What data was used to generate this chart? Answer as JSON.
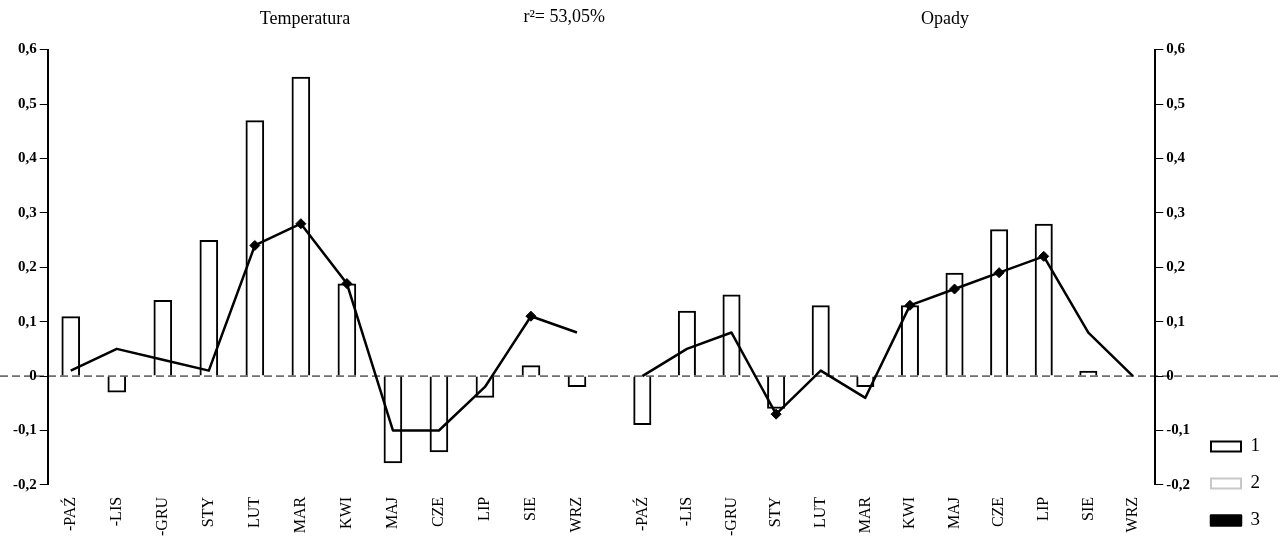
{
  "chart_data": [
    {
      "type": "bar",
      "title": "Temperatura",
      "annotations": [
        "r²= 53,05%"
      ],
      "categories": [
        "-PAŹ",
        "-LIS",
        "-GRU",
        "STY",
        "LUT",
        "MAR",
        "KWI",
        "MAJ",
        "CZE",
        "LIP",
        "SIE",
        "WRZ"
      ],
      "series": [
        {
          "color": "#000000",
          "values": [
            0.11,
            -0.03,
            0.14,
            0.25,
            0.47,
            0.55,
            0.17,
            -0.16,
            -0.14,
            -0.04,
            0.02,
            -0.02
          ]
        },
        {
          "type": "line",
          "color": "#000000",
          "marker": "none",
          "values": [
            0.01,
            0.05,
            0.03,
            0.01,
            0.24,
            0.28,
            0.17,
            -0.1,
            -0.1,
            -0.02,
            0.11,
            0.08
          ]
        },
        {
          "type": "scatter",
          "color": "#000000",
          "marker": "diamond",
          "x": [
            "LUT",
            "MAR",
            "KWI",
            "SIE"
          ],
          "values": [
            0.24,
            0.28,
            0.17,
            0.11
          ]
        }
      ],
      "ylim": [
        -0.2,
        0.6
      ],
      "yticks": [
        {
          "value": -0.2,
          "label": "-0,2"
        },
        {
          "value": -0.1,
          "label": "-0,1"
        },
        {
          "value": 0,
          "label": "0"
        },
        {
          "value": 0.1,
          "label": "0,1"
        },
        {
          "value": 0.2,
          "label": "0,2"
        },
        {
          "value": 0.3,
          "label": "0,3"
        },
        {
          "value": 0.4,
          "label": "0,4"
        },
        {
          "value": 0.5,
          "label": "0,5"
        },
        {
          "value": 0.6,
          "label": "0,6"
        }
      ],
      "ref_lines": [
        {
          "axis": "y",
          "value": 0,
          "line_style": "dashed"
        }
      ],
      "grid": false,
      "legend": false
    },
    {
      "type": "bar",
      "title": "Opady",
      "categories": [
        "-PAŹ",
        "-LIS",
        "-GRU",
        "STY",
        "LUT",
        "MAR",
        "KWI",
        "MAJ",
        "CZE",
        "LIP",
        "SIE",
        "WRZ"
      ],
      "series": [
        {
          "name": "1",
          "color": "#000000",
          "values": [
            -0.09,
            0.12,
            0.15,
            -0.06,
            0.13,
            -0.02,
            0.13,
            0.19,
            0.27,
            0.28,
            0.01,
            0
          ]
        },
        {
          "name": "2",
          "color": "#c8c8c8",
          "values": [
            null,
            null,
            null,
            null,
            null,
            null,
            null,
            null,
            null,
            null,
            null,
            null
          ]
        },
        {
          "name": "3",
          "type": "line",
          "color": "#000000",
          "marker": "none",
          "values": [
            0,
            0.05,
            0.08,
            -0.07,
            0.01,
            -0.04,
            0.13,
            0.16,
            0.19,
            0.22,
            0.08,
            0
          ]
        },
        {
          "type": "scatter",
          "color": "#000000",
          "marker": "diamond",
          "x": [
            "STY",
            "KWI",
            "MAJ",
            "CZE",
            "LIP"
          ],
          "values": [
            -0.07,
            0.13,
            0.16,
            0.19,
            0.22
          ]
        }
      ],
      "ylim": [
        -0.2,
        0.6
      ],
      "yticks": [
        {
          "value": -0.2,
          "label": "-0,2"
        },
        {
          "value": -0.1,
          "label": "-0,1"
        },
        {
          "value": 0,
          "label": "0"
        },
        {
          "value": 0.1,
          "label": "0,1"
        },
        {
          "value": 0.2,
          "label": "0,2"
        },
        {
          "value": 0.3,
          "label": "0,3"
        },
        {
          "value": 0.4,
          "label": "0,4"
        },
        {
          "value": 0.5,
          "label": "0,5"
        },
        {
          "value": 0.6,
          "label": "0,6"
        }
      ],
      "ref_lines": [
        {
          "axis": "y",
          "value": 0,
          "line_style": "dashed"
        }
      ],
      "grid": false,
      "legend": "bottom right"
    }
  ]
}
